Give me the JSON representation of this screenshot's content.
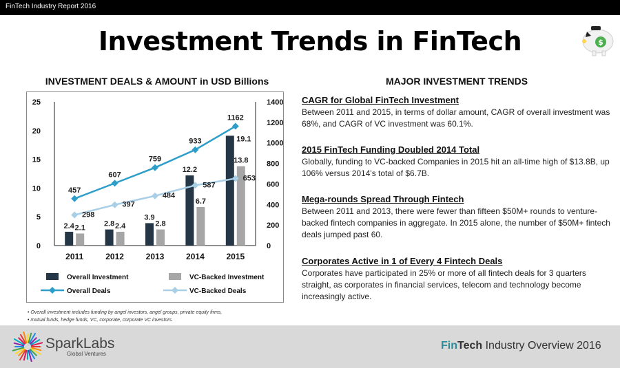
{
  "header": {
    "top_label": "FinTech Industry Report 2016",
    "title": "Investment Trends in FinTech"
  },
  "chart_title": "INVESTMENT DEALS & AMOUNT in USD Billions",
  "chart_data": {
    "type": "bar",
    "categories": [
      "2011",
      "2012",
      "2013",
      "2014",
      "2015"
    ],
    "series": [
      {
        "name": "Overall Investment",
        "kind": "bar",
        "axis": "left",
        "values": [
          2.4,
          2.8,
          3.9,
          12.2,
          19.1
        ],
        "labels": [
          "2.4",
          "2.8",
          "3.9",
          "12.2",
          "19.1"
        ],
        "color": "#253746"
      },
      {
        "name": "VC-Backed Investment",
        "kind": "bar",
        "axis": "left",
        "values": [
          2.1,
          2.4,
          2.8,
          6.7,
          13.8
        ],
        "labels": [
          "2.1",
          "2.4",
          "2.8",
          "6.7",
          "13.8"
        ],
        "color": "#a6a6a6"
      },
      {
        "name": "Overall Deals",
        "kind": "line",
        "axis": "right",
        "values": [
          457,
          607,
          759,
          933,
          1162
        ],
        "labels": [
          "457",
          "607",
          "759",
          "933",
          "1162"
        ],
        "color": "#2e9ec9"
      },
      {
        "name": "VC-Backed Deals",
        "kind": "line",
        "axis": "right",
        "values": [
          298,
          397,
          484,
          587,
          653
        ],
        "labels": [
          "298",
          "397",
          "484",
          "587",
          "653"
        ],
        "color": "#a9cfe6"
      }
    ],
    "left_axis": {
      "ylim": [
        0,
        25
      ],
      "ticks": [
        "0",
        "5",
        "10",
        "15",
        "20",
        "25"
      ]
    },
    "right_axis": {
      "ylim": [
        0,
        1400
      ],
      "ticks": [
        "0",
        "200",
        "400",
        "600",
        "800",
        "1000",
        "1200",
        "1400"
      ]
    },
    "legend_position": "bottom",
    "grid": false
  },
  "footnotes": [
    "Overall investment includes funding by angel investors, angel groups, private equity firms,",
    "mutual funds, hedge funds, VC, corporate, corporate VC investors."
  ],
  "right_title": "MAJOR INVESTMENT TRENDS",
  "trends": [
    {
      "heading": "CAGR for Global FinTech Investment",
      "body": "Between 2011 and 2015, in terms of dollar amount, CAGR of overall investment was 68%, and CAGR of VC investment was 60.1%."
    },
    {
      "heading": "2015 FinTech Funding Doubled 2014 Total",
      "body": "Globally, funding to VC-backed Companies in 2015 hit an all-time high of $13.8B, up 106% versus 2014's total of $6.7B."
    },
    {
      "heading": "Mega-rounds Spread Through Fintech",
      "body": "Between 2011 and 2013, there were fewer than fifteen $50M+ rounds to venture-backed fintech companies in aggregate. In 2015 alone, the number of $50M+ fintech deals jumped past 60."
    },
    {
      "heading": "Corporates Active in 1 of Every 4 Fintech Deals",
      "body": "Corporates have participated in 25% or more of all fintech deals for 3 quarters straight, as corporates in financial services, telecom and technology become increasingly active."
    }
  ],
  "footer": {
    "brand": "SparkLabs",
    "brand_sub": "Global Ventures",
    "right_fin": "Fin",
    "right_tech": "Tech",
    "right_rest": " Industry Overview 2016"
  },
  "icons": {
    "top_right": "piggy-bank-icon",
    "brand_logo": "sparklabs-starburst-icon"
  }
}
